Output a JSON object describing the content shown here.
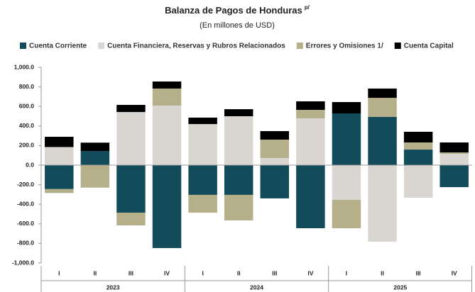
{
  "chart_data": {
    "type": "stacked_bar",
    "title": "Balanza de Pagos de Honduras",
    "title_superscript": "p/",
    "subtitle": "(En millones de USD)",
    "categories": [
      "I",
      "II",
      "III",
      "IV",
      "I",
      "II",
      "III",
      "IV",
      "I",
      "II",
      "III",
      "IV"
    ],
    "groups": [
      "2023",
      "2024",
      "2025"
    ],
    "series": [
      {
        "name": "Cuenta Corriente",
        "color": "#124b5a",
        "values": [
          -245,
          145,
          -486,
          -848,
          -304,
          -304,
          -340,
          -645,
          529,
          493,
          159,
          -225
        ]
      },
      {
        "name": "Cuenta Financiera, Reservas y Rubros Relacionados",
        "color": "#d9d6d2",
        "values": [
          185,
          0,
          543,
          609,
          420,
          500,
          72,
          478,
          -355,
          -783,
          -333,
          116
        ]
      },
      {
        "name": "Errores y Omisiones 1/",
        "color": "#b5b08a",
        "values": [
          -40,
          -230,
          -130,
          174,
          -182,
          -261,
          189,
          87,
          -290,
          195,
          73,
          14
        ]
      },
      {
        "name": "Cuenta Capital",
        "color": "#000000",
        "values": [
          105,
          85,
          73,
          72,
          66,
          72,
          87,
          87,
          116,
          95,
          109,
          102
        ]
      }
    ],
    "ylim": [
      -1000,
      1000
    ],
    "yticks": [
      {
        "value": 1000,
        "label": "1,000.0"
      },
      {
        "value": 800,
        "label": "800.0"
      },
      {
        "value": 600,
        "label": "600.0"
      },
      {
        "value": 400,
        "label": "400.0"
      },
      {
        "value": 200,
        "label": "200.0"
      },
      {
        "value": 0,
        "label": "0.0"
      },
      {
        "value": -200,
        "label": "-200.0"
      },
      {
        "value": -400,
        "label": "-400.0"
      },
      {
        "value": -600,
        "label": "-600.0"
      },
      {
        "value": -800,
        "label": "-800.0"
      },
      {
        "value": -1000,
        "label": "-1,000.0"
      }
    ],
    "grid": false
  }
}
